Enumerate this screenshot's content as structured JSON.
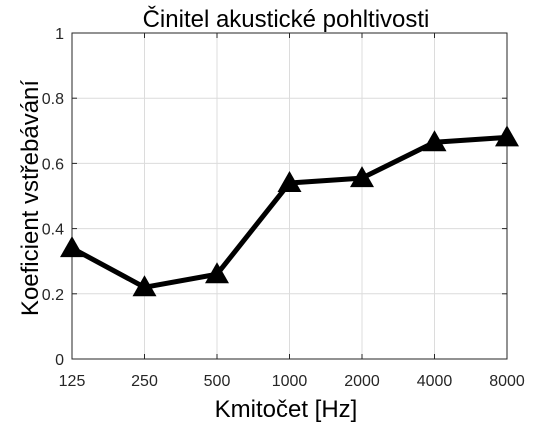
{
  "chart_data": {
    "type": "line",
    "title": "Činitel akustické pohltivosti",
    "xlabel": "Kmitočet [Hz]",
    "ylabel": "Koeficient vstřebávání",
    "categories": [
      "125",
      "250",
      "500",
      "1000",
      "2000",
      "4000",
      "8000"
    ],
    "series": [
      {
        "values": [
          0.34,
          0.22,
          0.26,
          0.54,
          0.555,
          0.665,
          0.68
        ]
      }
    ],
    "ylim": [
      0,
      1
    ],
    "yticks": [
      "0",
      "0.2",
      "0.4",
      "0.6",
      "0.8",
      "1"
    ],
    "grid": true,
    "legend": "none",
    "marker": "triangle",
    "colors": {
      "line": "#000000",
      "grid": "#dcdcdc",
      "axis": "#262626"
    }
  }
}
